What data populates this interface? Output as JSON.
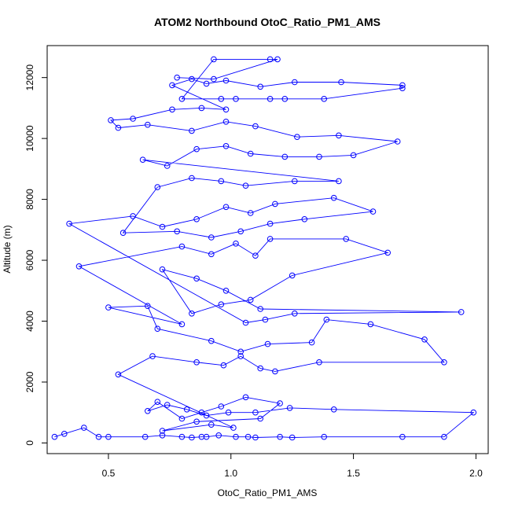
{
  "chart_data": {
    "type": "scatter",
    "title": "ATOM2 Northbound OtoC_Ratio_PM1_AMS",
    "xlabel": "OtoC_Ratio_PM1_AMS",
    "ylabel": "Altitude (m)",
    "xlim": [
      0.25,
      2.05
    ],
    "ylim": [
      -350,
      13050
    ],
    "xticks": [
      0.5,
      1.0,
      1.5,
      2.0
    ],
    "xtick_labels": [
      "0.5",
      "1.0",
      "1.5",
      "2.0"
    ],
    "yticks": [
      0,
      2000,
      4000,
      6000,
      8000,
      10000,
      12000
    ],
    "ytick_labels": [
      "0",
      "2000",
      "4000",
      "6000",
      "8000",
      "10000",
      "12000"
    ],
    "grid": false,
    "connected": true,
    "series_color": "#0000ff",
    "points": [
      [
        0.28,
        200
      ],
      [
        0.32,
        300
      ],
      [
        0.4,
        500
      ],
      [
        0.46,
        200
      ],
      [
        0.5,
        200
      ],
      [
        0.65,
        200
      ],
      [
        0.72,
        250
      ],
      [
        0.8,
        200
      ],
      [
        0.84,
        180
      ],
      [
        0.88,
        200
      ],
      [
        0.9,
        200
      ],
      [
        0.95,
        250
      ],
      [
        1.02,
        200
      ],
      [
        1.07,
        200
      ],
      [
        1.1,
        180
      ],
      [
        1.2,
        200
      ],
      [
        1.25,
        180
      ],
      [
        1.38,
        200
      ],
      [
        1.7,
        200
      ],
      [
        1.87,
        200
      ],
      [
        1.99,
        1000
      ],
      [
        1.42,
        1100
      ],
      [
        1.24,
        1150
      ],
      [
        1.1,
        1000
      ],
      [
        0.99,
        1000
      ],
      [
        0.9,
        900
      ],
      [
        0.82,
        1100
      ],
      [
        0.74,
        1250
      ],
      [
        0.66,
        1050
      ],
      [
        0.7,
        1350
      ],
      [
        0.8,
        800
      ],
      [
        0.88,
        1000
      ],
      [
        0.96,
        1200
      ],
      [
        1.06,
        1500
      ],
      [
        1.2,
        1300
      ],
      [
        1.12,
        800
      ],
      [
        0.86,
        700
      ],
      [
        0.72,
        400
      ],
      [
        0.92,
        600
      ],
      [
        1.01,
        500
      ],
      [
        0.54,
        2250
      ],
      [
        0.68,
        2850
      ],
      [
        0.86,
        2650
      ],
      [
        0.97,
        2550
      ],
      [
        1.04,
        2850
      ],
      [
        1.12,
        2450
      ],
      [
        1.18,
        2350
      ],
      [
        1.36,
        2650
      ],
      [
        1.87,
        2650
      ],
      [
        1.79,
        3400
      ],
      [
        1.57,
        3900
      ],
      [
        1.39,
        4050
      ],
      [
        1.33,
        3300
      ],
      [
        1.15,
        3250
      ],
      [
        1.04,
        3000
      ],
      [
        0.92,
        3350
      ],
      [
        0.7,
        3750
      ],
      [
        0.66,
        4500
      ],
      [
        0.5,
        4450
      ],
      [
        0.8,
        3900
      ],
      [
        0.38,
        5800
      ],
      [
        0.8,
        6450
      ],
      [
        0.92,
        6200
      ],
      [
        1.02,
        6550
      ],
      [
        1.1,
        6150
      ],
      [
        1.16,
        6700
      ],
      [
        1.47,
        6700
      ],
      [
        1.64,
        6250
      ],
      [
        1.25,
        5500
      ],
      [
        1.08,
        4700
      ],
      [
        0.96,
        4550
      ],
      [
        0.84,
        4250
      ],
      [
        0.72,
        5700
      ],
      [
        0.86,
        5400
      ],
      [
        0.98,
        5000
      ],
      [
        1.12,
        4400
      ],
      [
        1.94,
        4300
      ],
      [
        1.26,
        4250
      ],
      [
        1.14,
        4050
      ],
      [
        1.06,
        3950
      ],
      [
        0.34,
        7200
      ],
      [
        0.6,
        7450
      ],
      [
        0.72,
        7100
      ],
      [
        0.86,
        7350
      ],
      [
        0.98,
        7750
      ],
      [
        1.08,
        7550
      ],
      [
        1.18,
        7850
      ],
      [
        1.42,
        8050
      ],
      [
        1.58,
        7600
      ],
      [
        1.3,
        7350
      ],
      [
        1.16,
        7200
      ],
      [
        1.04,
        6950
      ],
      [
        0.92,
        6750
      ],
      [
        0.78,
        6950
      ],
      [
        0.56,
        6900
      ],
      [
        0.7,
        8400
      ],
      [
        0.84,
        8700
      ],
      [
        0.96,
        8600
      ],
      [
        1.06,
        8450
      ],
      [
        1.26,
        8600
      ],
      [
        1.44,
        8600
      ],
      [
        0.64,
        9300
      ],
      [
        0.74,
        9100
      ],
      [
        0.86,
        9650
      ],
      [
        0.98,
        9750
      ],
      [
        1.08,
        9500
      ],
      [
        1.22,
        9400
      ],
      [
        1.36,
        9400
      ],
      [
        1.5,
        9450
      ],
      [
        1.68,
        9900
      ],
      [
        1.44,
        10100
      ],
      [
        1.27,
        10050
      ],
      [
        1.1,
        10400
      ],
      [
        0.98,
        10550
      ],
      [
        0.84,
        10250
      ],
      [
        0.66,
        10450
      ],
      [
        0.54,
        10350
      ],
      [
        0.51,
        10600
      ],
      [
        0.6,
        10650
      ],
      [
        0.76,
        10950
      ],
      [
        0.88,
        11000
      ],
      [
        0.98,
        10950
      ],
      [
        0.76,
        11750
      ],
      [
        0.84,
        11950
      ],
      [
        0.9,
        11800
      ],
      [
        0.98,
        11900
      ],
      [
        1.12,
        11700
      ],
      [
        1.26,
        11850
      ],
      [
        1.45,
        11850
      ],
      [
        1.7,
        11750
      ],
      [
        1.7,
        11650
      ],
      [
        1.38,
        11300
      ],
      [
        1.22,
        11300
      ],
      [
        1.16,
        11300
      ],
      [
        1.02,
        11300
      ],
      [
        0.96,
        11300
      ],
      [
        0.8,
        11300
      ],
      [
        0.93,
        12600
      ],
      [
        1.16,
        12600
      ],
      [
        1.19,
        12600
      ],
      [
        0.93,
        11950
      ],
      [
        0.78,
        12000
      ]
    ]
  }
}
